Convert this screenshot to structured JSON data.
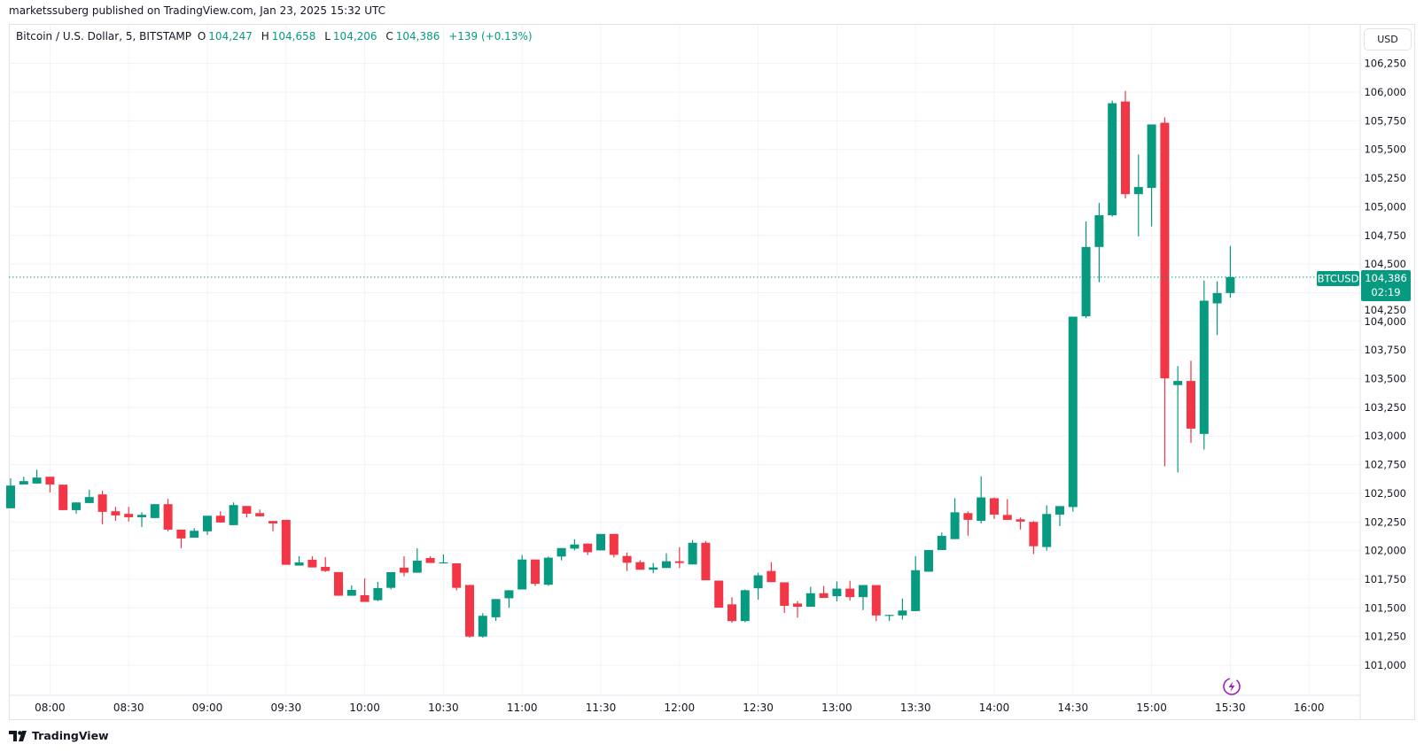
{
  "publisher_line": "marketssuberg published on TradingView.com, Jan 23, 2025 15:32 UTC",
  "legend": {
    "symbol": "Bitcoin / U.S. Dollar, 5, BITSTAMP",
    "o_label": "O",
    "o_value": "104,247",
    "h_label": "H",
    "h_value": "104,658",
    "l_label": "L",
    "l_value": "104,206",
    "c_label": "C",
    "c_value": "104,386",
    "change": "+139 (+0.13%)"
  },
  "currency_button": "USD",
  "price_tag": {
    "symbol": "BTCUSD",
    "price": "104,386",
    "countdown": "02:19"
  },
  "brand": "TradingView",
  "colors": {
    "up": "#089981",
    "down": "#F23645",
    "grid": "#f0f3fa",
    "lightning": "#9c27b0"
  },
  "icons": {
    "lightning": "lightning-icon",
    "logo": "tradingview-logo-icon"
  },
  "chart_data": {
    "type": "candlestick",
    "interval_minutes": 5,
    "current_price": 104386,
    "ylim": [
      100950,
      106350
    ],
    "grid": true,
    "y_ticks": [
      "106,250",
      "106,000",
      "105,750",
      "105,500",
      "105,250",
      "105,000",
      "104,750",
      "104,500",
      "104,250",
      "104,000",
      "103,750",
      "103,500",
      "103,250",
      "103,000",
      "102,750",
      "102,500",
      "102,250",
      "102,000",
      "101,750",
      "101,500",
      "101,250",
      "101,000"
    ],
    "x_ticks": [
      "08:00",
      "08:30",
      "09:00",
      "09:30",
      "10:00",
      "10:30",
      "11:00",
      "11:30",
      "12:00",
      "12:30",
      "13:00",
      "13:30",
      "14:00",
      "14:30",
      "15:00",
      "15:30",
      "16:00"
    ],
    "columns": [
      "time",
      "open",
      "high",
      "low",
      "close"
    ],
    "candles": [
      [
        "07:45",
        102369,
        102631,
        102369,
        102567
      ],
      [
        "07:50",
        102577,
        102644,
        102577,
        102606
      ],
      [
        "07:55",
        102585,
        102706,
        102585,
        102637
      ],
      [
        "08:00",
        102644,
        102644,
        102508,
        102577
      ],
      [
        "08:05",
        102575,
        102575,
        102353,
        102353
      ],
      [
        "08:10",
        102353,
        102420,
        102322,
        102420
      ],
      [
        "08:15",
        102415,
        102531,
        102415,
        102467
      ],
      [
        "08:20",
        102490,
        102521,
        102229,
        102338
      ],
      [
        "08:25",
        102343,
        102381,
        102260,
        102307
      ],
      [
        "08:30",
        102320,
        102381,
        102253,
        102291
      ],
      [
        "08:35",
        102291,
        102335,
        102206,
        102312
      ],
      [
        "08:40",
        102284,
        102405,
        102284,
        102405
      ],
      [
        "08:45",
        102405,
        102451,
        102168,
        102183
      ],
      [
        "08:50",
        102183,
        102183,
        102021,
        102106
      ],
      [
        "08:55",
        102113,
        102196,
        102113,
        102173
      ],
      [
        "09:00",
        102168,
        102304,
        102137,
        102304
      ],
      [
        "09:05",
        102304,
        102343,
        102245,
        102245
      ],
      [
        "09:10",
        102222,
        102420,
        102222,
        102397
      ],
      [
        "09:15",
        102389,
        102389,
        102289,
        102322
      ],
      [
        "09:20",
        102327,
        102358,
        102299,
        102299
      ],
      [
        "09:25",
        102258,
        102258,
        102168,
        102237
      ],
      [
        "09:30",
        102268,
        102268,
        101876,
        101876
      ],
      [
        "09:35",
        101869,
        101951,
        101869,
        101897
      ],
      [
        "09:40",
        101920,
        101951,
        101853,
        101853
      ],
      [
        "09:45",
        101858,
        101943,
        101814,
        101822
      ],
      [
        "09:50",
        101812,
        101812,
        101606,
        101606
      ],
      [
        "09:55",
        101606,
        101696,
        101606,
        101657
      ],
      [
        "10:00",
        101611,
        101758,
        101552,
        101552
      ],
      [
        "10:05",
        101567,
        101727,
        101559,
        101673
      ],
      [
        "10:10",
        101675,
        101812,
        101662,
        101812
      ],
      [
        "10:15",
        101851,
        101951,
        101776,
        101807
      ],
      [
        "10:20",
        101807,
        102020,
        101807,
        101912
      ],
      [
        "10:25",
        101935,
        101951,
        101892,
        101892
      ],
      [
        "10:30",
        101892,
        101966,
        101892,
        101897
      ],
      [
        "10:35",
        101889,
        101889,
        101652,
        101675
      ],
      [
        "10:40",
        101700,
        101700,
        101240,
        101250
      ],
      [
        "10:45",
        101250,
        101454,
        101240,
        101431
      ],
      [
        "10:50",
        101418,
        101577,
        101385,
        101577
      ],
      [
        "10:55",
        101584,
        101654,
        101500,
        101654
      ],
      [
        "11:00",
        101661,
        101961,
        101661,
        101922
      ],
      [
        "11:05",
        101922,
        101922,
        101692,
        101710
      ],
      [
        "11:10",
        101702,
        101948,
        101692,
        101938
      ],
      [
        "11:15",
        101948,
        102022,
        101915,
        102022
      ],
      [
        "11:20",
        102017,
        102099,
        102002,
        102053
      ],
      [
        "11:25",
        102061,
        102061,
        101961,
        101986
      ],
      [
        "11:30",
        102002,
        102145,
        102002,
        102145
      ],
      [
        "11:35",
        102145,
        102145,
        101940,
        101963
      ],
      [
        "11:40",
        101953,
        101984,
        101822,
        101894
      ],
      [
        "11:45",
        101899,
        101915,
        101833,
        101833
      ],
      [
        "11:50",
        101833,
        101892,
        101802,
        101853
      ],
      [
        "11:55",
        101848,
        101976,
        101848,
        101907
      ],
      [
        "12:00",
        101907,
        102030,
        101848,
        101892
      ],
      [
        "12:05",
        101879,
        102091,
        101879,
        102068
      ],
      [
        "12:10",
        102068,
        102084,
        101741,
        101741
      ],
      [
        "12:15",
        101738,
        101738,
        101502,
        101502
      ],
      [
        "12:20",
        101531,
        101592,
        101370,
        101385
      ],
      [
        "12:25",
        101385,
        101660,
        101375,
        101654
      ],
      [
        "12:30",
        101671,
        101807,
        101572,
        101784
      ],
      [
        "12:35",
        101822,
        101899,
        101725,
        101725
      ],
      [
        "12:40",
        101723,
        101723,
        101456,
        101518
      ],
      [
        "12:45",
        101538,
        101561,
        101415,
        101510
      ],
      [
        "12:50",
        101510,
        101684,
        101510,
        101628
      ],
      [
        "12:55",
        101628,
        101691,
        101587,
        101587
      ],
      [
        "13:00",
        101602,
        101730,
        101556,
        101668
      ],
      [
        "13:05",
        101668,
        101737,
        101564,
        101594
      ],
      [
        "13:10",
        101594,
        101699,
        101480,
        101699
      ],
      [
        "13:15",
        101699,
        101699,
        101385,
        101434
      ],
      [
        "13:20",
        101434,
        101439,
        101385,
        101439
      ],
      [
        "13:25",
        101434,
        101582,
        101398,
        101477
      ],
      [
        "13:30",
        101472,
        101952,
        101472,
        101829
      ],
      [
        "13:35",
        101816,
        102005,
        101816,
        102005
      ],
      [
        "13:40",
        102005,
        102158,
        102005,
        102128
      ],
      [
        "13:45",
        102100,
        102457,
        102100,
        102334
      ],
      [
        "13:50",
        102327,
        102342,
        102130,
        102268
      ],
      [
        "13:55",
        102260,
        102648,
        102237,
        102464
      ],
      [
        "14:00",
        102457,
        102464,
        102276,
        102314
      ],
      [
        "14:05",
        102311,
        102449,
        102268,
        102268
      ],
      [
        "14:10",
        102273,
        102288,
        102184,
        102253
      ],
      [
        "14:15",
        102250,
        102258,
        101969,
        102038
      ],
      [
        "14:20",
        102031,
        102395,
        102000,
        102319
      ],
      [
        "14:25",
        102314,
        102388,
        102214,
        102388
      ],
      [
        "14:30",
        102380,
        104041,
        102341,
        104041
      ],
      [
        "14:35",
        104044,
        104872,
        104028,
        104649
      ],
      [
        "14:40",
        104649,
        105033,
        104341,
        104926
      ],
      [
        "14:45",
        104926,
        105926,
        104913,
        105903
      ],
      [
        "14:50",
        105918,
        106010,
        105072,
        105110
      ],
      [
        "14:55",
        105110,
        105456,
        104741,
        105172
      ],
      [
        "15:00",
        105164,
        105718,
        104828,
        105718
      ],
      [
        "15:05",
        105733,
        105780,
        102736,
        103503
      ],
      [
        "15:10",
        103444,
        103610,
        102682,
        103480
      ],
      [
        "15:15",
        103480,
        103657,
        102941,
        103064
      ],
      [
        "15:20",
        103018,
        104356,
        102882,
        104180
      ],
      [
        "15:25",
        104157,
        104349,
        103880,
        104247
      ],
      [
        "15:30",
        104247,
        104658,
        104206,
        104386
      ]
    ]
  }
}
